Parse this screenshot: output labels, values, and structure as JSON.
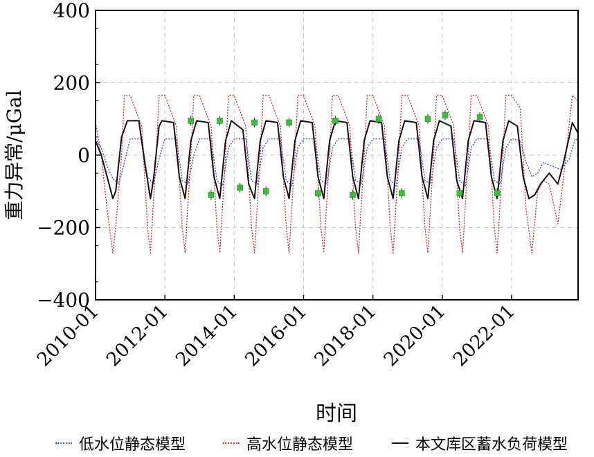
{
  "chart_data": {
    "type": "line",
    "xlabel": "时间",
    "ylabel": "重力异常/μGal",
    "ylim": [
      -400,
      400
    ],
    "xlim": [
      "2010-01",
      "2023-12"
    ],
    "yticks": [
      {
        "value": 400,
        "label": "400"
      },
      {
        "value": 200,
        "label": "200"
      },
      {
        "value": 0,
        "label": "0"
      },
      {
        "value": -200,
        "label": "−200"
      },
      {
        "value": -400,
        "label": "−400"
      }
    ],
    "xticks": [
      {
        "value": "2010-01",
        "label": "2010-01"
      },
      {
        "value": "2012-01",
        "label": "2012-01"
      },
      {
        "value": "2014-01",
        "label": "2014-01"
      },
      {
        "value": "2016-01",
        "label": "2016-01"
      },
      {
        "value": "2018-01",
        "label": "2018-01"
      },
      {
        "value": "2020-01",
        "label": "2020-01"
      },
      {
        "value": "2022-01",
        "label": "2022-01"
      }
    ],
    "grid": true,
    "legend_position": "bottom",
    "series": [
      {
        "name": "低水位静态模型",
        "color": "#3a4bd0",
        "style": "dotted",
        "points": [
          [
            "2010-01",
            45
          ],
          [
            "2010-03",
            20
          ],
          [
            "2010-05",
            -30
          ],
          [
            "2010-07",
            -65
          ],
          [
            "2010-09",
            -80
          ],
          [
            "2010-11",
            -20
          ],
          [
            "2011-01",
            45
          ],
          [
            "2011-05",
            45
          ],
          [
            "2011-07",
            -60
          ],
          [
            "2011-09",
            -80
          ],
          [
            "2011-11",
            -10
          ],
          [
            "2012-01",
            45
          ],
          [
            "2012-05",
            45
          ],
          [
            "2012-07",
            -70
          ],
          [
            "2012-09",
            -80
          ],
          [
            "2012-11",
            0
          ],
          [
            "2013-01",
            45
          ],
          [
            "2013-05",
            45
          ],
          [
            "2013-07",
            -70
          ],
          [
            "2013-09",
            -85
          ],
          [
            "2013-11",
            20
          ],
          [
            "2014-01",
            45
          ],
          [
            "2014-05",
            45
          ],
          [
            "2014-07",
            -70
          ],
          [
            "2014-09",
            -80
          ],
          [
            "2014-11",
            20
          ],
          [
            "2015-01",
            45
          ],
          [
            "2015-05",
            45
          ],
          [
            "2015-07",
            -70
          ],
          [
            "2015-09",
            -85
          ],
          [
            "2015-11",
            20
          ],
          [
            "2016-01",
            45
          ],
          [
            "2016-05",
            45
          ],
          [
            "2016-07",
            -70
          ],
          [
            "2016-09",
            -80
          ],
          [
            "2016-11",
            20
          ],
          [
            "2017-01",
            45
          ],
          [
            "2017-05",
            45
          ],
          [
            "2017-07",
            -70
          ],
          [
            "2017-09",
            -80
          ],
          [
            "2017-11",
            20
          ],
          [
            "2018-01",
            45
          ],
          [
            "2018-05",
            45
          ],
          [
            "2018-07",
            -70
          ],
          [
            "2018-09",
            -85
          ],
          [
            "2018-11",
            20
          ],
          [
            "2019-01",
            45
          ],
          [
            "2019-05",
            45
          ],
          [
            "2019-07",
            -70
          ],
          [
            "2019-09",
            -80
          ],
          [
            "2019-11",
            20
          ],
          [
            "2020-01",
            45
          ],
          [
            "2020-05",
            45
          ],
          [
            "2020-07",
            -70
          ],
          [
            "2020-09",
            -85
          ],
          [
            "2020-11",
            20
          ],
          [
            "2021-01",
            45
          ],
          [
            "2021-05",
            45
          ],
          [
            "2021-07",
            -70
          ],
          [
            "2021-09",
            -80
          ],
          [
            "2021-11",
            20
          ],
          [
            "2022-01",
            45
          ],
          [
            "2022-04",
            40
          ],
          [
            "2022-06",
            -20
          ],
          [
            "2022-08",
            -60
          ],
          [
            "2022-10",
            -50
          ],
          [
            "2022-12",
            -20
          ],
          [
            "2023-03",
            -30
          ],
          [
            "2023-06",
            -40
          ],
          [
            "2023-09",
            -10
          ],
          [
            "2023-11",
            45
          ],
          [
            "2023-12",
            40
          ]
        ]
      },
      {
        "name": "高水位静态模型",
        "color": "#c8303a",
        "style": "dotted",
        "points": [
          [
            "2010-01",
            90
          ],
          [
            "2010-03",
            0
          ],
          [
            "2010-05",
            -150
          ],
          [
            "2010-07",
            -270
          ],
          [
            "2010-08",
            -200
          ],
          [
            "2010-10",
            0
          ],
          [
            "2010-11",
            165
          ],
          [
            "2011-01",
            165
          ],
          [
            "2011-05",
            80
          ],
          [
            "2011-07",
            -200
          ],
          [
            "2011-08",
            -270
          ],
          [
            "2011-10",
            0
          ],
          [
            "2011-11",
            165
          ],
          [
            "2012-01",
            165
          ],
          [
            "2012-05",
            80
          ],
          [
            "2012-07",
            -200
          ],
          [
            "2012-08",
            -270
          ],
          [
            "2012-10",
            0
          ],
          [
            "2012-11",
            165
          ],
          [
            "2013-01",
            165
          ],
          [
            "2013-05",
            80
          ],
          [
            "2013-07",
            -200
          ],
          [
            "2013-08",
            -270
          ],
          [
            "2013-10",
            0
          ],
          [
            "2013-11",
            165
          ],
          [
            "2014-01",
            165
          ],
          [
            "2014-05",
            80
          ],
          [
            "2014-07",
            -200
          ],
          [
            "2014-08",
            -270
          ],
          [
            "2014-10",
            0
          ],
          [
            "2014-11",
            165
          ],
          [
            "2015-01",
            165
          ],
          [
            "2015-05",
            80
          ],
          [
            "2015-07",
            -200
          ],
          [
            "2015-08",
            -270
          ],
          [
            "2015-10",
            0
          ],
          [
            "2015-11",
            165
          ],
          [
            "2016-01",
            165
          ],
          [
            "2016-05",
            80
          ],
          [
            "2016-07",
            -200
          ],
          [
            "2016-08",
            -270
          ],
          [
            "2016-10",
            0
          ],
          [
            "2016-11",
            165
          ],
          [
            "2017-01",
            165
          ],
          [
            "2017-05",
            80
          ],
          [
            "2017-07",
            -200
          ],
          [
            "2017-08",
            -270
          ],
          [
            "2017-10",
            0
          ],
          [
            "2017-11",
            165
          ],
          [
            "2018-01",
            165
          ],
          [
            "2018-05",
            80
          ],
          [
            "2018-07",
            -200
          ],
          [
            "2018-08",
            -270
          ],
          [
            "2018-10",
            0
          ],
          [
            "2018-11",
            165
          ],
          [
            "2019-01",
            165
          ],
          [
            "2019-05",
            80
          ],
          [
            "2019-07",
            -200
          ],
          [
            "2019-08",
            -270
          ],
          [
            "2019-10",
            0
          ],
          [
            "2019-11",
            165
          ],
          [
            "2020-01",
            165
          ],
          [
            "2020-05",
            80
          ],
          [
            "2020-07",
            -200
          ],
          [
            "2020-08",
            -270
          ],
          [
            "2020-10",
            0
          ],
          [
            "2020-11",
            165
          ],
          [
            "2021-01",
            165
          ],
          [
            "2021-05",
            80
          ],
          [
            "2021-07",
            -200
          ],
          [
            "2021-08",
            -270
          ],
          [
            "2021-10",
            0
          ],
          [
            "2021-11",
            165
          ],
          [
            "2022-01",
            165
          ],
          [
            "2022-04",
            130
          ],
          [
            "2022-06",
            -150
          ],
          [
            "2022-08",
            -270
          ],
          [
            "2022-10",
            -100
          ],
          [
            "2022-12",
            -70
          ],
          [
            "2023-02",
            -80
          ],
          [
            "2023-05",
            -190
          ],
          [
            "2023-07",
            -60
          ],
          [
            "2023-10",
            165
          ],
          [
            "2023-12",
            150
          ]
        ]
      },
      {
        "name": "本文库区蓄水负荷模型",
        "color": "#111111",
        "style": "solid",
        "points": [
          [
            "2010-01",
            40
          ],
          [
            "2010-03",
            0
          ],
          [
            "2010-05",
            -60
          ],
          [
            "2010-07",
            -120
          ],
          [
            "2010-08",
            -100
          ],
          [
            "2010-10",
            50
          ],
          [
            "2010-12",
            95
          ],
          [
            "2011-04",
            95
          ],
          [
            "2011-06",
            -20
          ],
          [
            "2011-08",
            -120
          ],
          [
            "2011-09",
            -70
          ],
          [
            "2011-11",
            80
          ],
          [
            "2011-12",
            95
          ],
          [
            "2012-04",
            90
          ],
          [
            "2012-06",
            -60
          ],
          [
            "2012-08",
            -120
          ],
          [
            "2012-10",
            40
          ],
          [
            "2012-12",
            95
          ],
          [
            "2013-04",
            90
          ],
          [
            "2013-06",
            -60
          ],
          [
            "2013-08",
            -120
          ],
          [
            "2013-10",
            40
          ],
          [
            "2013-12",
            95
          ],
          [
            "2014-04",
            70
          ],
          [
            "2014-06",
            -80
          ],
          [
            "2014-08",
            -120
          ],
          [
            "2014-10",
            40
          ],
          [
            "2014-12",
            95
          ],
          [
            "2015-04",
            90
          ],
          [
            "2015-06",
            -60
          ],
          [
            "2015-08",
            -120
          ],
          [
            "2015-10",
            40
          ],
          [
            "2015-12",
            95
          ],
          [
            "2016-04",
            90
          ],
          [
            "2016-06",
            -60
          ],
          [
            "2016-08",
            -120
          ],
          [
            "2016-10",
            40
          ],
          [
            "2016-12",
            95
          ],
          [
            "2017-04",
            90
          ],
          [
            "2017-06",
            -60
          ],
          [
            "2017-08",
            -120
          ],
          [
            "2017-10",
            40
          ],
          [
            "2017-12",
            95
          ],
          [
            "2018-04",
            90
          ],
          [
            "2018-06",
            -60
          ],
          [
            "2018-08",
            -120
          ],
          [
            "2018-10",
            40
          ],
          [
            "2018-12",
            95
          ],
          [
            "2019-04",
            90
          ],
          [
            "2019-06",
            -60
          ],
          [
            "2019-08",
            -120
          ],
          [
            "2019-10",
            40
          ],
          [
            "2019-12",
            95
          ],
          [
            "2020-04",
            80
          ],
          [
            "2020-06",
            -70
          ],
          [
            "2020-08",
            -120
          ],
          [
            "2020-10",
            40
          ],
          [
            "2020-12",
            95
          ],
          [
            "2021-04",
            90
          ],
          [
            "2021-06",
            -60
          ],
          [
            "2021-08",
            -120
          ],
          [
            "2021-10",
            40
          ],
          [
            "2021-12",
            95
          ],
          [
            "2022-03",
            80
          ],
          [
            "2022-05",
            -60
          ],
          [
            "2022-07",
            -120
          ],
          [
            "2022-09",
            -110
          ],
          [
            "2022-11",
            -80
          ],
          [
            "2023-02",
            -50
          ],
          [
            "2023-05",
            -80
          ],
          [
            "2023-07",
            -20
          ],
          [
            "2023-10",
            90
          ],
          [
            "2023-12",
            60
          ]
        ]
      }
    ],
    "observations": {
      "color": "#3dbd3d",
      "points": [
        [
          "2012-10",
          95
        ],
        [
          "2013-05",
          -110
        ],
        [
          "2013-08",
          95
        ],
        [
          "2014-03",
          -90
        ],
        [
          "2014-08",
          90
        ],
        [
          "2014-12",
          -100
        ],
        [
          "2015-08",
          90
        ],
        [
          "2016-06",
          -105
        ],
        [
          "2016-12",
          95
        ],
        [
          "2017-06",
          -110
        ],
        [
          "2018-03",
          100
        ],
        [
          "2018-11",
          -105
        ],
        [
          "2019-08",
          100
        ],
        [
          "2020-02",
          110
        ],
        [
          "2020-07",
          -105
        ],
        [
          "2021-02",
          105
        ],
        [
          "2021-08",
          -105
        ]
      ]
    }
  }
}
